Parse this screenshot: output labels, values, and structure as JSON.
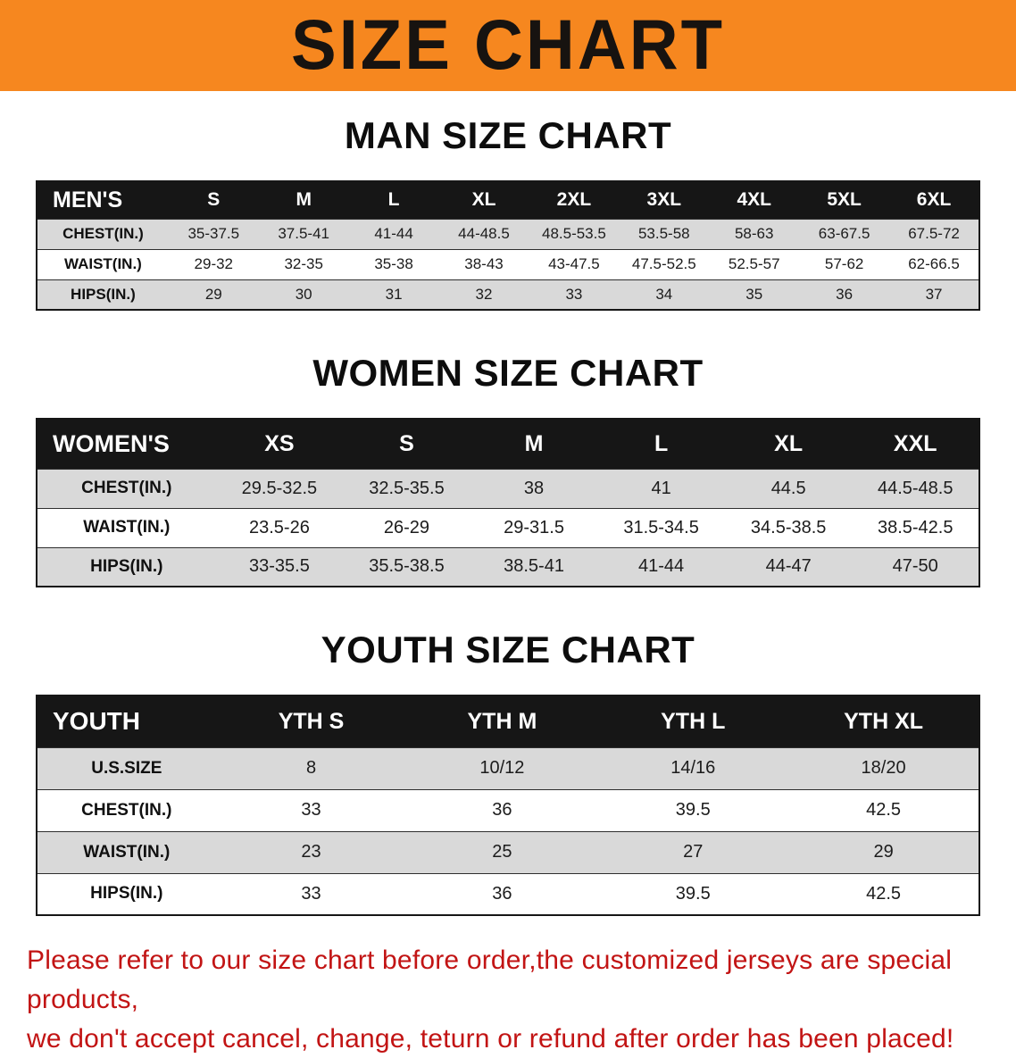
{
  "banner": {
    "title": "SIZE CHART",
    "bg_color": "#f6871f",
    "title_color": "#171310"
  },
  "sections": [
    {
      "id": "men",
      "heading": "MAN SIZE CHART",
      "table": {
        "header": [
          "MEN'S",
          "S",
          "M",
          "L",
          "XL",
          "2XL",
          "3XL",
          "4XL",
          "5XL",
          "6XL"
        ],
        "rows": [
          [
            "CHEST(IN.)",
            "35-37.5",
            "37.5-41",
            "41-44",
            "44-48.5",
            "48.5-53.5",
            "53.5-58",
            "58-63",
            "63-67.5",
            "67.5-72"
          ],
          [
            "WAIST(IN.)",
            "29-32",
            "32-35",
            "35-38",
            "38-43",
            "43-47.5",
            "47.5-52.5",
            "52.5-57",
            "57-62",
            "62-66.5"
          ],
          [
            "HIPS(IN.)",
            "29",
            "30",
            "31",
            "32",
            "33",
            "34",
            "35",
            "36",
            "37"
          ]
        ]
      }
    },
    {
      "id": "women",
      "heading": "WOMEN SIZE CHART",
      "table": {
        "header": [
          "WOMEN'S",
          "XS",
          "S",
          "M",
          "L",
          "XL",
          "XXL"
        ],
        "rows": [
          [
            "CHEST(IN.)",
            "29.5-32.5",
            "32.5-35.5",
            "38",
            "41",
            "44.5",
            "44.5-48.5"
          ],
          [
            "WAIST(IN.)",
            "23.5-26",
            "26-29",
            "29-31.5",
            "31.5-34.5",
            "34.5-38.5",
            "38.5-42.5"
          ],
          [
            "HIPS(IN.)",
            "33-35.5",
            "35.5-38.5",
            "38.5-41",
            "41-44",
            "44-47",
            "47-50"
          ]
        ]
      }
    },
    {
      "id": "youth",
      "heading": "YOUTH SIZE CHART",
      "table": {
        "header": [
          "YOUTH",
          "YTH S",
          "YTH M",
          "YTH L",
          "YTH XL"
        ],
        "rows": [
          [
            "U.S.SIZE",
            "8",
            "10/12",
            "14/16",
            "18/20"
          ],
          [
            "CHEST(IN.)",
            "33",
            "36",
            "39.5",
            "42.5"
          ],
          [
            "WAIST(IN.)",
            "23",
            "25",
            "27",
            "29"
          ],
          [
            "HIPS(IN.)",
            "33",
            "36",
            "39.5",
            "42.5"
          ]
        ]
      }
    }
  ],
  "table_colors": {
    "header_bg": "#161616",
    "header_text": "#ffffff",
    "shaded_row": "#d9d9d9",
    "plain_row": "#ffffff"
  },
  "disclaimer": {
    "line1": "Please refer to our size chart before order,the customized jerseys are special products,",
    "line2": "we don't accept cancel, change, teturn or refund after order has been placed!",
    "color": "#c21414"
  }
}
